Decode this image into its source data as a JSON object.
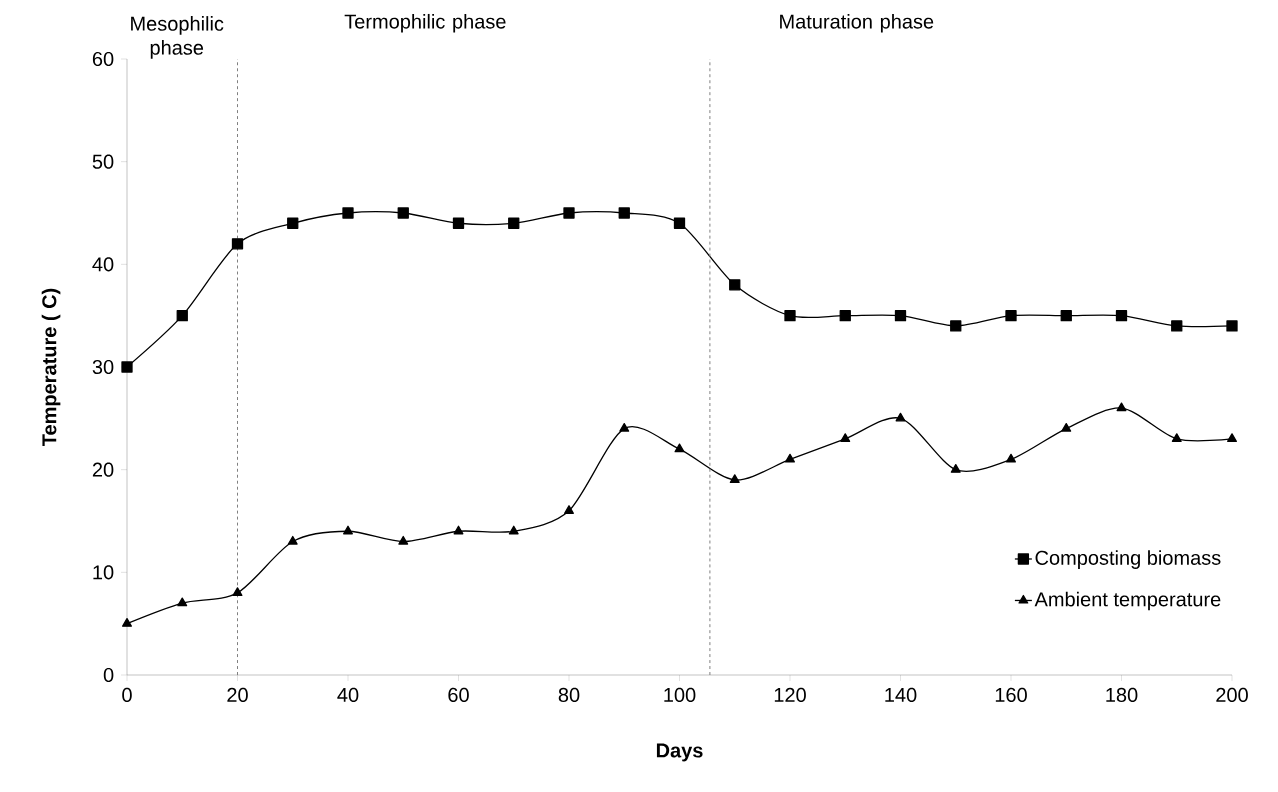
{
  "chart_data": {
    "type": "line",
    "xlabel": "Days",
    "ylabel": "Temperature ( C)",
    "x": [
      0,
      10,
      20,
      30,
      40,
      50,
      60,
      70,
      80,
      90,
      100,
      110,
      120,
      130,
      140,
      150,
      160,
      170,
      180,
      190,
      200
    ],
    "series": [
      {
        "name": "Composting biomass",
        "color": "#000000",
        "marker": "square",
        "values": [
          30,
          35,
          42,
          44,
          45,
          45,
          44,
          44,
          45,
          45,
          44,
          38,
          35,
          35,
          35,
          34,
          35,
          35,
          35,
          34,
          34
        ]
      },
      {
        "name": "Ambient temperature",
        "color": "#000000",
        "marker": "triangle",
        "values": [
          5,
          7,
          8,
          13,
          14,
          13,
          14,
          14,
          16,
          24,
          22,
          19,
          21,
          23,
          25,
          20,
          21,
          24,
          26,
          23,
          23
        ]
      }
    ],
    "xlim": [
      0,
      200
    ],
    "xticks": [
      0,
      20,
      40,
      60,
      80,
      100,
      120,
      140,
      160,
      180,
      200
    ],
    "ylim": [
      0,
      60
    ],
    "yticks": [
      0,
      10,
      20,
      30,
      40,
      50,
      60
    ],
    "ref_lines": [
      {
        "axis": "x",
        "value": 20,
        "color": "#808080",
        "line_style": "dashed"
      },
      {
        "axis": "x",
        "value": 105.5,
        "color": "#808080",
        "line_style": "dashed"
      }
    ],
    "annotations": [
      "Mesophilic phase",
      "Termophilic phase",
      "Maturation phase"
    ],
    "legend": "bottom right",
    "grid": false,
    "line_style": "solid"
  }
}
